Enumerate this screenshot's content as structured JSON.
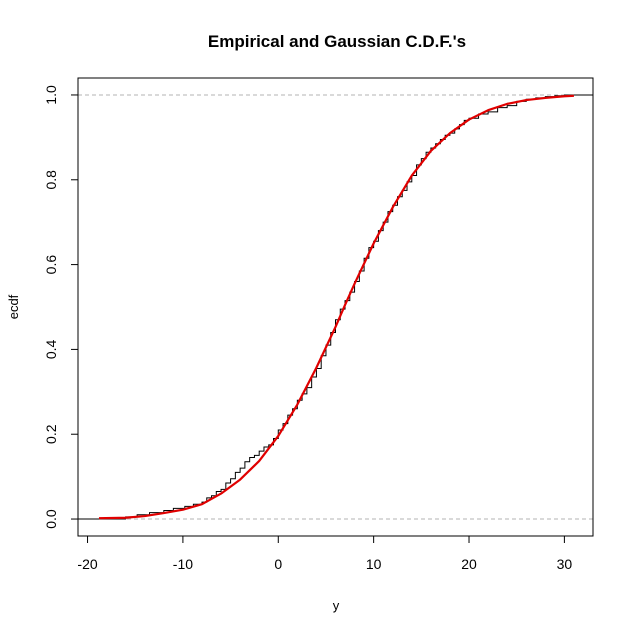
{
  "chart_data": {
    "type": "line",
    "title": "Empirical and Gaussian C.D.F.'s",
    "xlabel": "y",
    "ylabel": "ecdf",
    "xlim": [
      -21,
      33
    ],
    "ylim": [
      -0.04,
      1.04
    ],
    "x_ticks": [
      -20,
      -10,
      0,
      10,
      20,
      30
    ],
    "x_tick_labels": [
      "-20",
      "-10",
      "0",
      "10",
      "20",
      "30"
    ],
    "y_ticks": [
      0.0,
      0.2,
      0.4,
      0.6,
      0.8,
      1.0
    ],
    "y_tick_labels": [
      "0.0",
      "0.2",
      "0.4",
      "0.6",
      "0.8",
      "1.0"
    ],
    "reference_lines": [
      0,
      1
    ],
    "grid": false,
    "series": [
      {
        "type": "step",
        "color": "#000000",
        "x": [
          -18.8,
          -16,
          -14.8,
          -13.5,
          -12,
          -11,
          -9.8,
          -8.9,
          -8,
          -7.5,
          -7,
          -6.5,
          -6,
          -5.5,
          -5,
          -4.5,
          -4,
          -3.5,
          -3,
          -2.5,
          -2,
          -1.5,
          -1,
          -0.5,
          0,
          0.5,
          1,
          1.5,
          2,
          2.5,
          3,
          3.5,
          4,
          4.5,
          5,
          5.5,
          6,
          6.5,
          7,
          7.5,
          8,
          8.5,
          9,
          9.5,
          10,
          10.5,
          11,
          11.5,
          12,
          12.5,
          13,
          13.5,
          14,
          14.5,
          15,
          15.5,
          16,
          16.5,
          17,
          17.5,
          18,
          18.5,
          19,
          19.5,
          20,
          21,
          22,
          23,
          24,
          25,
          26,
          27,
          28,
          29,
          30
        ],
        "y": [
          0.0,
          0.005,
          0.01,
          0.015,
          0.02,
          0.025,
          0.03,
          0.035,
          0.04,
          0.05,
          0.055,
          0.065,
          0.07,
          0.085,
          0.095,
          0.11,
          0.12,
          0.135,
          0.145,
          0.15,
          0.16,
          0.17,
          0.175,
          0.19,
          0.21,
          0.225,
          0.245,
          0.26,
          0.28,
          0.295,
          0.31,
          0.335,
          0.355,
          0.385,
          0.41,
          0.44,
          0.47,
          0.495,
          0.515,
          0.535,
          0.56,
          0.585,
          0.615,
          0.64,
          0.655,
          0.68,
          0.7,
          0.725,
          0.74,
          0.76,
          0.775,
          0.795,
          0.81,
          0.835,
          0.85,
          0.865,
          0.875,
          0.885,
          0.895,
          0.905,
          0.91,
          0.92,
          0.93,
          0.94,
          0.945,
          0.955,
          0.96,
          0.97,
          0.975,
          0.985,
          0.99,
          0.993,
          0.996,
          0.998,
          1.0
        ]
      },
      {
        "type": "line",
        "color": "#e00000",
        "x": [
          -18.8,
          -16,
          -14,
          -12,
          -10,
          -8,
          -6,
          -4,
          -2,
          0,
          2,
          4,
          6,
          7,
          8,
          10,
          12,
          14,
          16,
          18,
          20,
          22,
          24,
          26,
          28,
          30,
          31
        ],
        "y": [
          0.002,
          0.003,
          0.007,
          0.014,
          0.022,
          0.035,
          0.06,
          0.093,
          0.137,
          0.196,
          0.27,
          0.357,
          0.453,
          0.505,
          0.555,
          0.65,
          0.735,
          0.81,
          0.868,
          0.91,
          0.942,
          0.964,
          0.979,
          0.988,
          0.993,
          0.997,
          0.998
        ]
      }
    ]
  }
}
